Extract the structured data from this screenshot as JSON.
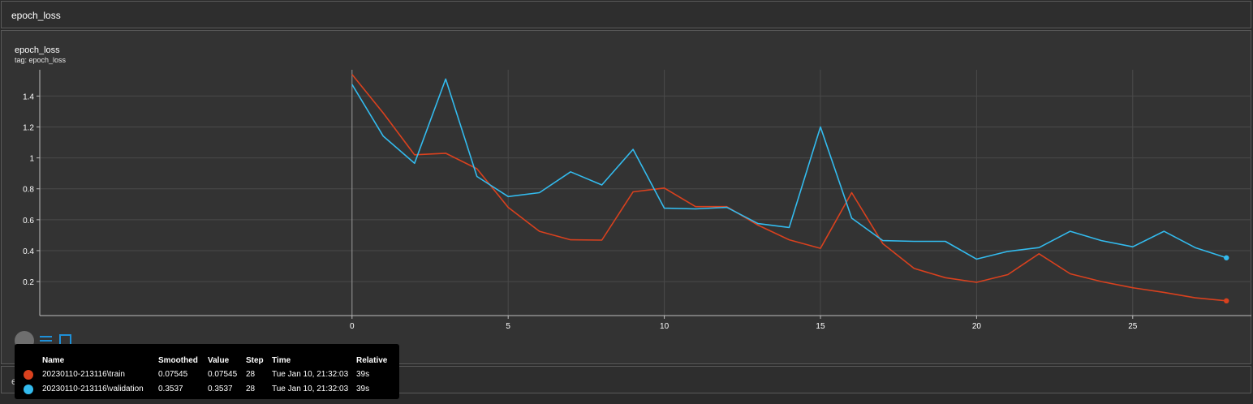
{
  "section": {
    "title": "epoch_loss"
  },
  "card": {
    "title": "epoch_loss",
    "tag": "tag: epoch_loss"
  },
  "next_section": {
    "title": "evaluation_acc_vs_iterations"
  },
  "colors": {
    "train": "#d9411e",
    "validation": "#33bbee",
    "grid": "#4a4a4a",
    "axis": "#bdbdbd"
  },
  "chart_data": {
    "type": "line",
    "xlim": [
      -10,
      28.8
    ],
    "ylim": [
      -0.02,
      1.57
    ],
    "x_ticks": [
      0,
      5,
      10,
      15,
      20,
      25
    ],
    "y_ticks": [
      0.2,
      0.4,
      0.6,
      0.8,
      1,
      1.2,
      1.4
    ],
    "y_tick_labels": [
      "0.2",
      "0.4",
      "0.6",
      "0.8",
      "1",
      "1.2",
      "1.4"
    ],
    "grid": true,
    "series": [
      {
        "name": "20230110-213116\\train",
        "color": "#d9411e",
        "x": [
          0,
          1,
          2,
          3,
          4,
          5,
          6,
          7,
          8,
          9,
          10,
          11,
          12,
          13,
          14,
          15,
          16,
          17,
          18,
          19,
          20,
          21,
          22,
          23,
          24,
          25,
          26,
          27,
          28
        ],
        "y": [
          1.54,
          1.29,
          1.02,
          1.03,
          0.93,
          0.68,
          0.525,
          0.47,
          0.468,
          0.78,
          0.805,
          0.685,
          0.685,
          0.565,
          0.47,
          0.415,
          0.775,
          0.445,
          0.285,
          0.225,
          0.195,
          0.245,
          0.38,
          0.25,
          0.2,
          0.16,
          0.13,
          0.095,
          0.07545
        ]
      },
      {
        "name": "20230110-213116\\validation",
        "color": "#33bbee",
        "x": [
          0,
          1,
          2,
          3,
          4,
          5,
          6,
          7,
          8,
          9,
          10,
          11,
          12,
          13,
          14,
          15,
          16,
          17,
          18,
          19,
          20,
          21,
          22,
          23,
          24,
          25,
          26,
          27,
          28
        ],
        "y": [
          1.475,
          1.14,
          0.965,
          1.51,
          0.88,
          0.75,
          0.775,
          0.91,
          0.825,
          1.055,
          0.675,
          0.67,
          0.68,
          0.575,
          0.55,
          1.2,
          0.61,
          0.465,
          0.46,
          0.46,
          0.345,
          0.395,
          0.42,
          0.525,
          0.465,
          0.425,
          0.525,
          0.42,
          0.3537
        ]
      }
    ]
  },
  "tooltip": {
    "headers": {
      "name": "Name",
      "smoothed": "Smoothed",
      "value": "Value",
      "step": "Step",
      "time": "Time",
      "relative": "Relative"
    },
    "rows": [
      {
        "name": "20230110-213116\\train",
        "smoothed": "0.07545",
        "value": "0.07545",
        "step": "28",
        "time": "Tue Jan 10, 21:32:03",
        "relative": "39s",
        "color": "#d9411e"
      },
      {
        "name": "20230110-213116\\validation",
        "smoothed": "0.3537",
        "value": "0.3537",
        "step": "28",
        "time": "Tue Jan 10, 21:32:03",
        "relative": "39s",
        "color": "#33bbee"
      }
    ]
  }
}
